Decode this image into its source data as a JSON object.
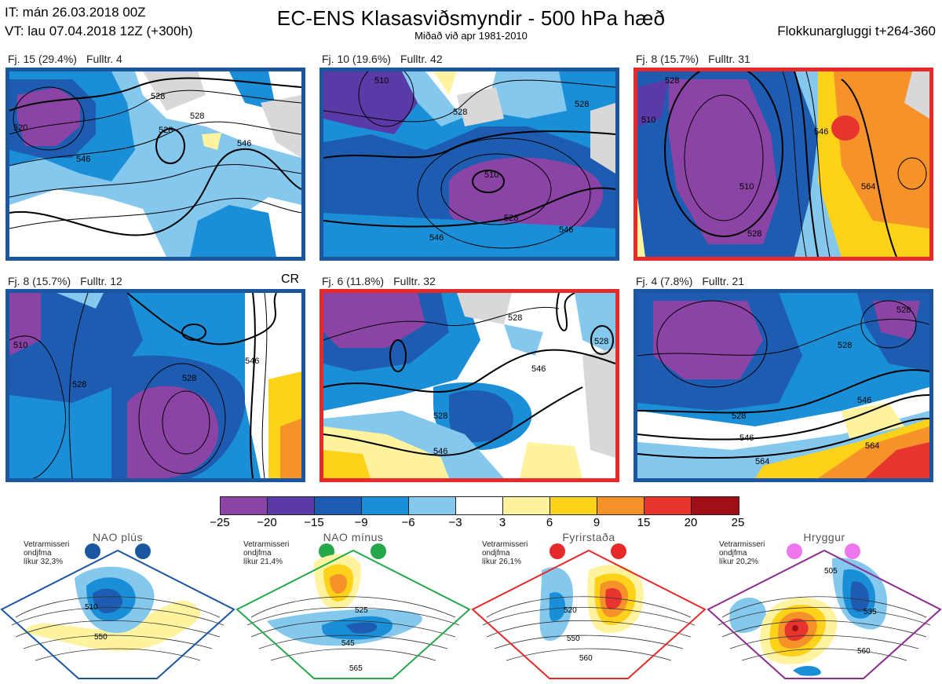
{
  "header": {
    "it_line": "IT: mán 26.03.2018 00Z",
    "vt_line": "VT: lau 07.04.2018 12Z  (+300h)",
    "title": "EC-ENS Klasasviðsmyndir - 500 hPa hæð",
    "subtitle": "Miðað við apr 1981-2010",
    "window": "Flokkunargluggi t+264-360"
  },
  "cr_label": "CR",
  "clusters": [
    {
      "label": "Fj. 15 (29.4%)",
      "member": "Fulltr. 4",
      "frame_color": "#1b56a0",
      "contours": [
        "528",
        "528",
        "528",
        "546",
        "520",
        "546"
      ]
    },
    {
      "label": "Fj. 10 (19.6%)",
      "member": "Fulltr. 42",
      "frame_color": "#1b56a0",
      "contours": [
        "510",
        "528",
        "528",
        "510",
        "528",
        "546",
        "546"
      ]
    },
    {
      "label": "Fj. 8 (15.7%)",
      "member": "Fulltr. 31",
      "frame_color": "#e62a2a",
      "contours": [
        "528",
        "510",
        "546",
        "510",
        "564",
        "528"
      ]
    },
    {
      "label": "Fj. 8 (15.7%)",
      "member": "Fulltr. 12",
      "frame_color": "#1b56a0",
      "contours": [
        "510",
        "528",
        "528",
        "546"
      ]
    },
    {
      "label": "Fj. 6 (11.8%)",
      "member": "Fulltr. 32",
      "frame_color": "#e62a2a",
      "contours": [
        "528",
        "528",
        "546",
        "528",
        "546"
      ]
    },
    {
      "label": "Fj. 4 (7.8%)",
      "member": "Fulltr. 21",
      "frame_color": "#1b56a0",
      "contours": [
        "528",
        "528",
        "546",
        "528",
        "546",
        "564",
        "564"
      ]
    }
  ],
  "colorbar": {
    "ticks": [
      "−25",
      "−20",
      "−15",
      "−9",
      "−6",
      "−3",
      "3",
      "6",
      "9",
      "15",
      "20",
      "25"
    ],
    "colors": [
      "#8b44a6",
      "#5a3aa6",
      "#1d5cb0",
      "#1a8fd8",
      "#85c8ee",
      "#ffffff",
      "#fff3a0",
      "#ffd21a",
      "#f5922a",
      "#e8342e",
      "#a01016"
    ]
  },
  "regimes": [
    {
      "name": "NAO plús",
      "color": "#1b56a0",
      "winter": "Vetrarmisseri",
      "ondjfma": "ondjfma",
      "likur": "líkur 32,3%",
      "contours": [
        "510",
        "550"
      ]
    },
    {
      "name": "NAO mínus",
      "color": "#24a84a",
      "winter": "Vetrarmisseri",
      "ondjfma": "ondjfma",
      "likur": "líkur 21,4%",
      "contours": [
        "525",
        "545",
        "565"
      ]
    },
    {
      "name": "Fyrirstaða",
      "color": "#e62a2a",
      "winter": "Vetrarmisseri",
      "ondjfma": "ondjfma",
      "likur": "líkur 26,1%",
      "contours": [
        "520",
        "550",
        "560"
      ]
    },
    {
      "name": "Hryggur",
      "color": "#8a2d8f",
      "winter": "Vetrarmisseri",
      "ondjfma": "ondjfma",
      "likur": "líkur 20,2%",
      "contours": [
        "505",
        "535",
        "560"
      ]
    }
  ],
  "regime_dot_colors": [
    "#1b56a0",
    "#24a84a",
    "#e62a2a",
    "#ee77ee"
  ]
}
